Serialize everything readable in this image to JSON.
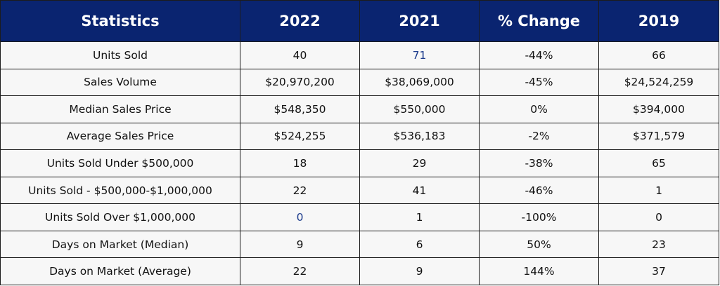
{
  "colors": {
    "header_bg": "#0a2470",
    "header_text": "#ffffff",
    "row_bg": "#f7f7f7",
    "highlight_text": "#1c3b8c"
  },
  "table": {
    "headers": [
      "Statistics",
      "2022",
      "2021",
      "% Change",
      "2019"
    ],
    "rows": [
      [
        "Units Sold",
        "40",
        "71",
        "-44%",
        "66"
      ],
      [
        "Sales Volume",
        "$20,970,200",
        "$38,069,000",
        "-45%",
        "$24,524,259"
      ],
      [
        "Median Sales Price",
        "$548,350",
        "$550,000",
        "0%",
        "$394,000"
      ],
      [
        "Average Sales Price",
        "$524,255",
        "$536,183",
        "-2%",
        "$371,579"
      ],
      [
        "Units Sold Under $500,000",
        "18",
        "29",
        "-38%",
        "65"
      ],
      [
        "Units Sold - $500,000-$1,000,000",
        "22",
        "41",
        "-46%",
        "1"
      ],
      [
        "Units Sold Over $1,000,000",
        "0",
        "1",
        "-100%",
        "0"
      ],
      [
        "Days on Market (Median)",
        "9",
        "6",
        "50%",
        "23"
      ],
      [
        "Days on Market (Average)",
        "22",
        "9",
        "144%",
        "37"
      ]
    ]
  }
}
